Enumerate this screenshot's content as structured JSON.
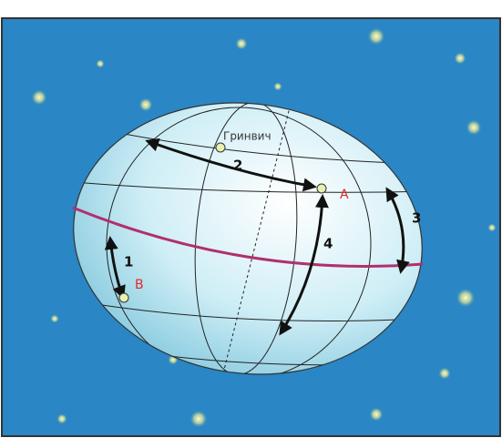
{
  "labels": {
    "greenwich": "Гринвич",
    "point_a": "A",
    "point_b": "B",
    "arc_1": "1",
    "arc_2": "2",
    "arc_3": "3",
    "arc_4": "4"
  }
}
